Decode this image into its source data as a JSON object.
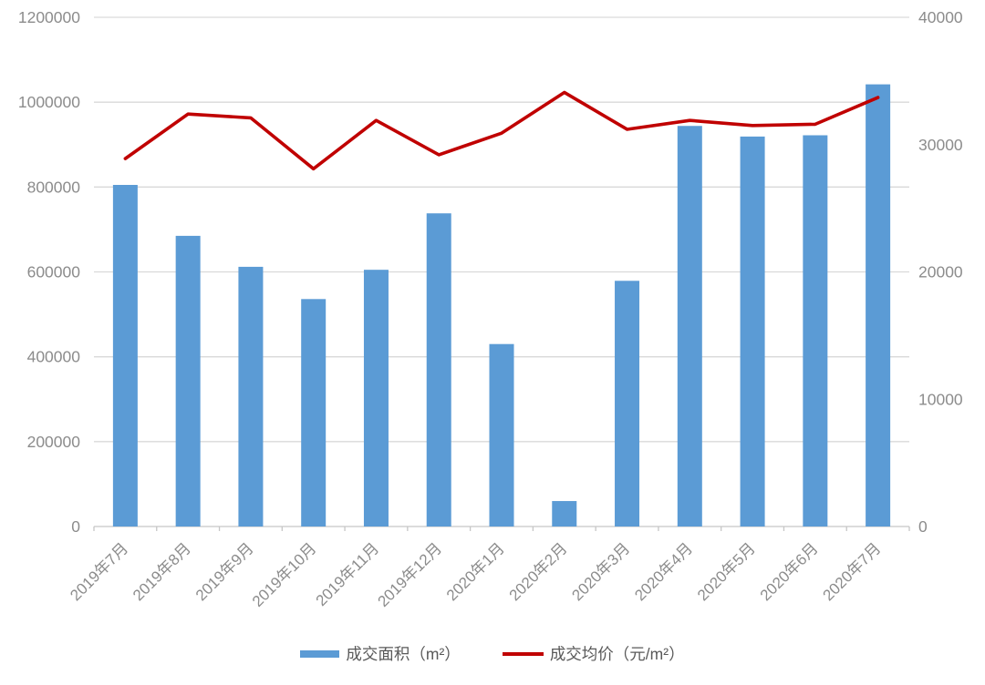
{
  "chart_data": {
    "type": "combo-bar-line",
    "title": "",
    "categories": [
      "2019年7月",
      "2019年8月",
      "2019年9月",
      "2019年10月",
      "2019年11月",
      "2019年12月",
      "2020年1月",
      "2020年2月",
      "2020年3月",
      "2020年4月",
      "2020年5月",
      "2020年6月",
      "2020年7月"
    ],
    "series": [
      {
        "name": "成交面积（m²）",
        "type": "bar",
        "axis": "left",
        "color": "#5B9BD5",
        "values": [
          805000,
          685000,
          612000,
          536000,
          605000,
          738000,
          430000,
          60000,
          579000,
          944000,
          919000,
          922000,
          1042000
        ]
      },
      {
        "name": "成交均价（元/m²）",
        "type": "line",
        "axis": "right",
        "color": "#C00000",
        "values": [
          28900,
          32400,
          32100,
          28100,
          31900,
          29200,
          30900,
          34100,
          31200,
          31900,
          31500,
          31600,
          33700
        ]
      }
    ],
    "y_left": {
      "min": 0,
      "max": 1200000,
      "step": 200000,
      "tick_values": [
        0,
        200000,
        400000,
        600000,
        800000,
        1000000,
        1200000
      ],
      "tick_labels": [
        "0",
        "200000",
        "400000",
        "600000",
        "800000",
        "1000000",
        "1200000"
      ]
    },
    "y_right": {
      "min": 0,
      "max": 40000,
      "step": 10000,
      "tick_values": [
        0,
        10000,
        20000,
        30000,
        40000
      ],
      "tick_labels": [
        "0",
        "10000",
        "20000",
        "30000",
        "40000"
      ]
    },
    "legend_position": "bottom",
    "grid": "horizontal-only",
    "colors": {
      "bar": "#5B9BD5",
      "line": "#C00000",
      "gridline": "#D9D9D9",
      "axis_line": "#C6C6C6",
      "axis_text": "#8C8C8C",
      "legend_text": "#595959",
      "background": "#FFFFFF"
    }
  }
}
